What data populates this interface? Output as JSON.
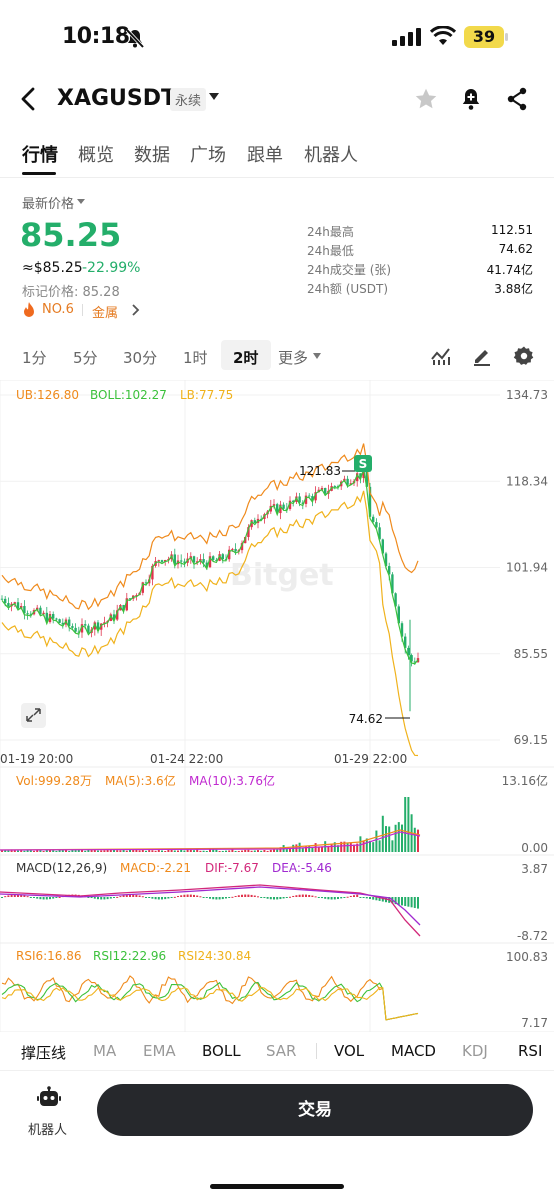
{
  "status_bar": {
    "time": "10:18",
    "battery": "39"
  },
  "header": {
    "symbol": "XAGUSDT",
    "contract_type": "永续"
  },
  "tabs": [
    {
      "label": "行情",
      "active": true
    },
    {
      "label": "概览"
    },
    {
      "label": "数据"
    },
    {
      "label": "广场"
    },
    {
      "label": "跟单"
    },
    {
      "label": "机器人"
    }
  ],
  "price": {
    "label": "最新价格",
    "last": "85.25",
    "usd": "≈$85.25",
    "change": "-22.99%",
    "mark": "标记价格: 85.28",
    "rank": "NO.6",
    "category": "金属",
    "up_color": "#e0334c",
    "down_color": "#24ae6a"
  },
  "stats": [
    {
      "label": "24h最高",
      "value": "112.51"
    },
    {
      "label": "24h最低",
      "value": "74.62"
    },
    {
      "label": "24h成交量 (张)",
      "value": "41.74亿"
    },
    {
      "label": "24h额 (USDT)",
      "value": "3.88亿"
    }
  ],
  "intervals": [
    {
      "label": "1分"
    },
    {
      "label": "5分"
    },
    {
      "label": "30分"
    },
    {
      "label": "1时"
    },
    {
      "label": "2时",
      "active": true
    },
    {
      "label": "更多"
    }
  ],
  "chart_data": {
    "type": "candlestick",
    "boll_legend": {
      "ub": "UB:126.80",
      "boll": "BOLL:102.27",
      "lb": "LB:77.75"
    },
    "y_ticks": [
      "134.73",
      "118.34",
      "101.94",
      "85.55",
      "69.15"
    ],
    "y_range": [
      69.15,
      134.73
    ],
    "x_ticks": [
      "01-19 20:00",
      "01-24 22:00",
      "01-29 22:00"
    ],
    "high_marker": "121.83",
    "low_marker": "74.62",
    "marker_badge": "S",
    "watermark": "Bitget",
    "colors": {
      "ub": "#ef8a1c",
      "boll": "#3cc13c",
      "lb": "#f0b21c",
      "up": "#e0334c",
      "down": "#24ae6a"
    },
    "vol": {
      "label": "Vol:999.28万",
      "ma5": "MA(5):3.6亿",
      "ma10": "MA(10):3.76亿",
      "top": "13.16亿",
      "bottom": "0.00"
    },
    "macd": {
      "label": "MACD(12,26,9)",
      "macd": "MACD:-2.21",
      "dif": "DIF:-7.67",
      "dea": "DEA:-5.46",
      "top": "3.87",
      "bottom": "-8.72"
    },
    "rsi": {
      "rsi6": "RSI6:16.86",
      "rsi12": "RSI12:22.96",
      "rsi24": "RSI24:30.84",
      "top": "100.83",
      "bottom": "7.17"
    }
  },
  "indicator_tabs": [
    {
      "label": "撑压线",
      "on": true
    },
    {
      "label": "MA"
    },
    {
      "label": "EMA"
    },
    {
      "label": "BOLL",
      "on": true
    },
    {
      "label": "SAR"
    },
    {
      "label": "VOL",
      "on": true
    },
    {
      "label": "MACD",
      "on": true
    },
    {
      "label": "KDJ"
    },
    {
      "label": "RSI",
      "on": true
    }
  ],
  "bottom": {
    "robot_label": "机器人",
    "trade_label": "交易"
  }
}
